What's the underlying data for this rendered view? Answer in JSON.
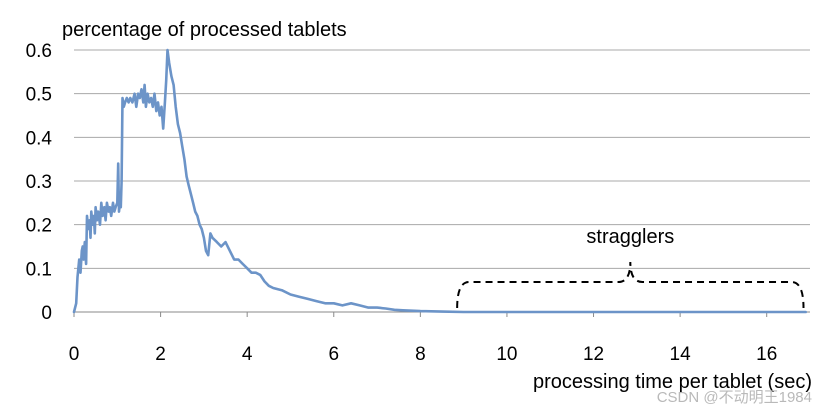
{
  "chart_data": {
    "type": "line",
    "title": "",
    "ylabel": "percentage of processed tablets",
    "xlabel": "processing time per tablet (sec)",
    "xlim": [
      0,
      17
    ],
    "ylim": [
      0,
      0.6
    ],
    "xticks": [
      "0",
      "2",
      "4",
      "6",
      "8",
      "10",
      "12",
      "14",
      "16"
    ],
    "yticks": [
      "0",
      "0.1",
      "0.2",
      "0.3",
      "0.4",
      "0.5",
      "0.6"
    ],
    "grid": "horizontal",
    "series_color": "#6c94c8",
    "annotation": "stragglers",
    "annotation_span": [
      8.85,
      16.85
    ],
    "series": [
      {
        "points": [
          [
            0.0,
            0.0
          ],
          [
            0.05,
            0.02
          ],
          [
            0.08,
            0.08
          ],
          [
            0.12,
            0.12
          ],
          [
            0.15,
            0.09
          ],
          [
            0.18,
            0.14
          ],
          [
            0.2,
            0.15
          ],
          [
            0.22,
            0.12
          ],
          [
            0.25,
            0.16
          ],
          [
            0.28,
            0.11
          ],
          [
            0.3,
            0.22
          ],
          [
            0.33,
            0.19
          ],
          [
            0.36,
            0.21
          ],
          [
            0.38,
            0.17
          ],
          [
            0.4,
            0.23
          ],
          [
            0.43,
            0.2
          ],
          [
            0.46,
            0.22
          ],
          [
            0.48,
            0.18
          ],
          [
            0.5,
            0.24
          ],
          [
            0.53,
            0.21
          ],
          [
            0.56,
            0.23
          ],
          [
            0.6,
            0.2
          ],
          [
            0.63,
            0.25
          ],
          [
            0.66,
            0.22
          ],
          [
            0.7,
            0.24
          ],
          [
            0.73,
            0.21
          ],
          [
            0.76,
            0.25
          ],
          [
            0.8,
            0.23
          ],
          [
            0.83,
            0.24
          ],
          [
            0.86,
            0.22
          ],
          [
            0.9,
            0.25
          ],
          [
            0.93,
            0.23
          ],
          [
            0.96,
            0.24
          ],
          [
            1.0,
            0.25
          ],
          [
            1.02,
            0.34
          ],
          [
            1.04,
            0.23
          ],
          [
            1.06,
            0.25
          ],
          [
            1.08,
            0.24
          ],
          [
            1.1,
            0.3
          ],
          [
            1.12,
            0.49
          ],
          [
            1.15,
            0.47
          ],
          [
            1.18,
            0.48
          ],
          [
            1.22,
            0.49
          ],
          [
            1.26,
            0.48
          ],
          [
            1.3,
            0.49
          ],
          [
            1.35,
            0.48
          ],
          [
            1.4,
            0.5
          ],
          [
            1.44,
            0.47
          ],
          [
            1.48,
            0.5
          ],
          [
            1.52,
            0.49
          ],
          [
            1.56,
            0.51
          ],
          [
            1.6,
            0.48
          ],
          [
            1.63,
            0.52
          ],
          [
            1.66,
            0.47
          ],
          [
            1.7,
            0.5
          ],
          [
            1.74,
            0.48
          ],
          [
            1.78,
            0.49
          ],
          [
            1.82,
            0.47
          ],
          [
            1.86,
            0.5
          ],
          [
            1.9,
            0.46
          ],
          [
            1.94,
            0.48
          ],
          [
            1.98,
            0.45
          ],
          [
            2.02,
            0.47
          ],
          [
            2.06,
            0.42
          ],
          [
            2.1,
            0.48
          ],
          [
            2.13,
            0.53
          ],
          [
            2.16,
            0.6
          ],
          [
            2.2,
            0.57
          ],
          [
            2.25,
            0.54
          ],
          [
            2.3,
            0.52
          ],
          [
            2.35,
            0.47
          ],
          [
            2.4,
            0.43
          ],
          [
            2.45,
            0.41
          ],
          [
            2.5,
            0.38
          ],
          [
            2.55,
            0.35
          ],
          [
            2.6,
            0.31
          ],
          [
            2.65,
            0.29
          ],
          [
            2.7,
            0.27
          ],
          [
            2.75,
            0.25
          ],
          [
            2.8,
            0.23
          ],
          [
            2.85,
            0.22
          ],
          [
            2.9,
            0.2
          ],
          [
            2.95,
            0.19
          ],
          [
            3.0,
            0.17
          ],
          [
            3.05,
            0.14
          ],
          [
            3.1,
            0.13
          ],
          [
            3.15,
            0.18
          ],
          [
            3.2,
            0.17
          ],
          [
            3.3,
            0.16
          ],
          [
            3.4,
            0.15
          ],
          [
            3.5,
            0.16
          ],
          [
            3.6,
            0.14
          ],
          [
            3.7,
            0.12
          ],
          [
            3.8,
            0.12
          ],
          [
            3.9,
            0.11
          ],
          [
            4.0,
            0.1
          ],
          [
            4.1,
            0.09
          ],
          [
            4.2,
            0.09
          ],
          [
            4.3,
            0.085
          ],
          [
            4.4,
            0.07
          ],
          [
            4.5,
            0.06
          ],
          [
            4.6,
            0.055
          ],
          [
            4.8,
            0.05
          ],
          [
            5.0,
            0.04
          ],
          [
            5.2,
            0.035
          ],
          [
            5.4,
            0.03
          ],
          [
            5.6,
            0.025
          ],
          [
            5.8,
            0.02
          ],
          [
            6.0,
            0.02
          ],
          [
            6.2,
            0.015
          ],
          [
            6.4,
            0.02
          ],
          [
            6.6,
            0.015
          ],
          [
            6.8,
            0.01
          ],
          [
            7.0,
            0.01
          ],
          [
            7.2,
            0.008
          ],
          [
            7.4,
            0.005
          ],
          [
            7.6,
            0.004
          ],
          [
            7.8,
            0.003
          ],
          [
            8.0,
            0.002
          ],
          [
            8.5,
            0.001
          ],
          [
            9.0,
            0.0
          ],
          [
            10.0,
            0.0
          ],
          [
            12.0,
            0.0
          ],
          [
            14.0,
            0.0
          ],
          [
            16.0,
            0.0
          ],
          [
            16.9,
            0.0
          ]
        ]
      }
    ]
  },
  "watermark": "CSDN @不动明王1984"
}
